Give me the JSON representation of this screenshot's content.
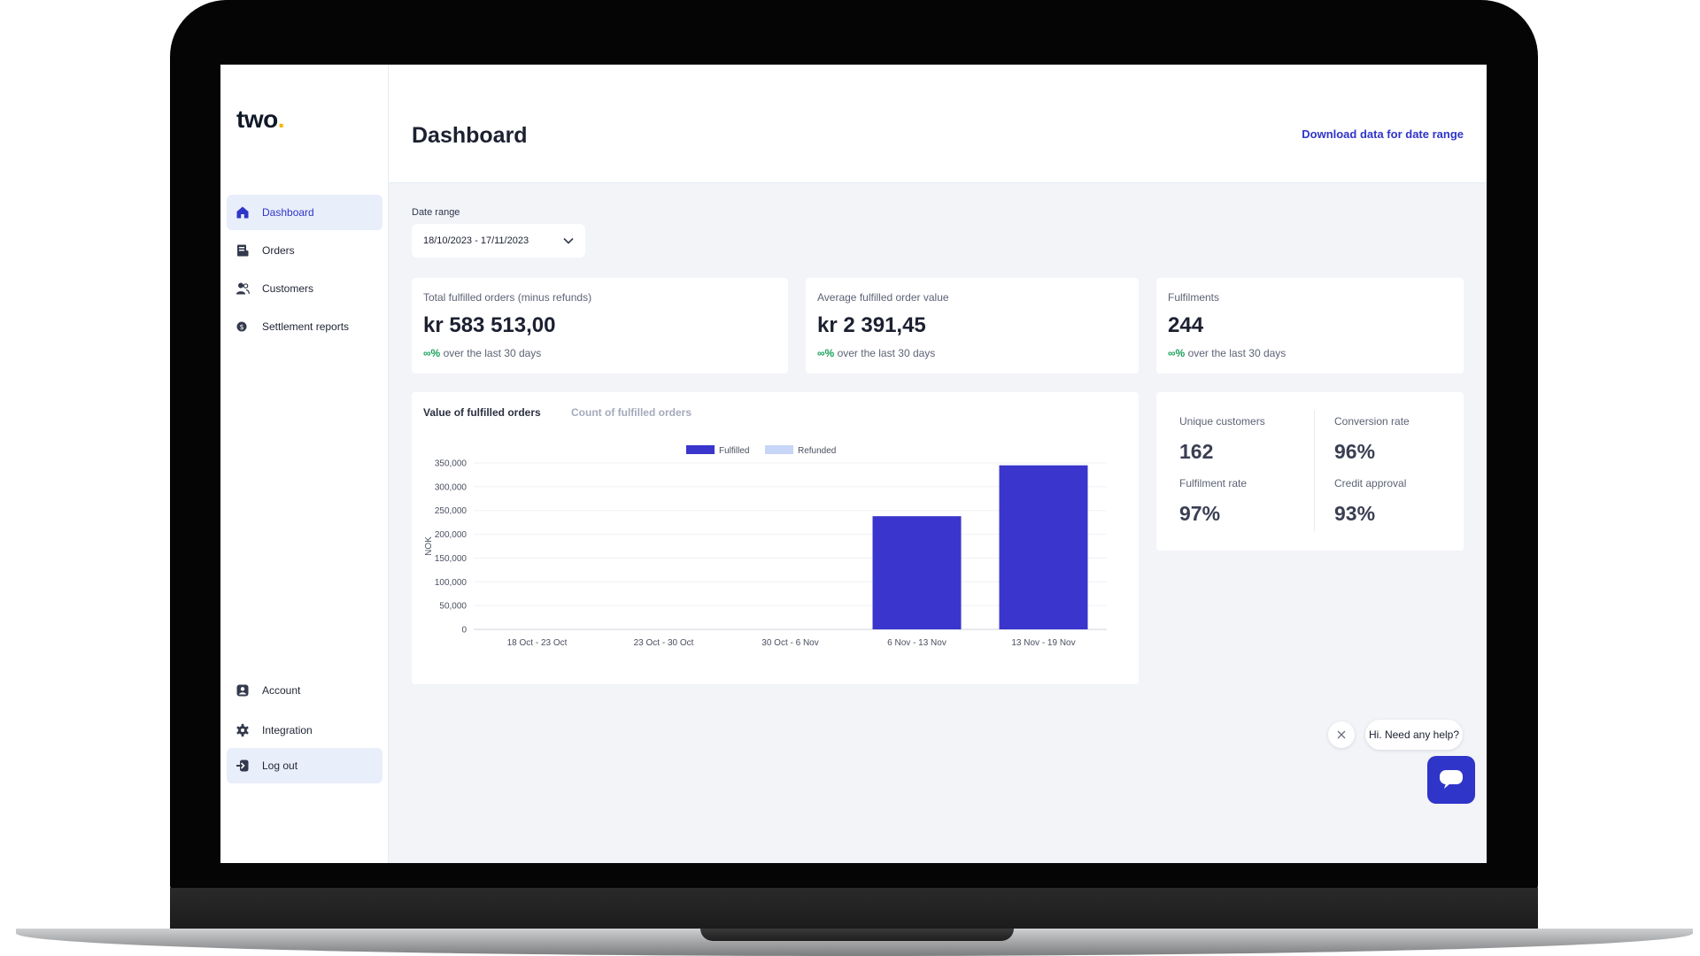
{
  "brand": {
    "name": "two",
    "dot": "."
  },
  "sidebar": {
    "items": [
      {
        "label": "Dashboard",
        "icon": "house-icon"
      },
      {
        "label": "Orders",
        "icon": "receipt-icon"
      },
      {
        "label": "Customers",
        "icon": "users-icon"
      },
      {
        "label": "Settlement reports",
        "icon": "coin-icon"
      }
    ],
    "bottom_items": [
      {
        "label": "Account",
        "icon": "user-card-icon"
      },
      {
        "label": "Integration",
        "icon": "gear-icon"
      },
      {
        "label": "Log out",
        "icon": "logout-icon"
      }
    ]
  },
  "header": {
    "title": "Dashboard",
    "download_label": "Download data for date range"
  },
  "filters": {
    "date_range_label": "Date range",
    "date_range_value": "18/10/2023 - 17/11/2023"
  },
  "stats": [
    {
      "label": "Total fulfilled orders (minus refunds)",
      "value": "kr 583 513,00",
      "change": "∞%",
      "period": " over the last 30 days"
    },
    {
      "label": "Average fulfilled order value",
      "value": "kr 2 391,45",
      "change": "∞%",
      "period": " over the last 30 days"
    },
    {
      "label": "Fulfilments",
      "value": "244",
      "change": "∞%",
      "period": " over the last 30 days"
    }
  ],
  "chart_tabs": {
    "active": "Value of fulfilled orders",
    "inactive": "Count of fulfilled orders"
  },
  "chart_data": {
    "type": "bar",
    "categories": [
      "18 Oct - 23 Oct",
      "23 Oct - 30 Oct",
      "30 Oct - 6 Nov",
      "6 Nov - 13 Nov",
      "13 Nov - 19 Nov"
    ],
    "series": [
      {
        "name": "Fulfilled",
        "values": [
          0,
          0,
          0,
          238000,
          345000
        ],
        "color": "#3a35cc"
      },
      {
        "name": "Refunded",
        "values": [
          0,
          0,
          0,
          0,
          0
        ],
        "color": "#c7d5f7"
      }
    ],
    "ylabel": "NOK",
    "ylim": [
      0,
      350000
    ],
    "yticks": [
      "0",
      "50,000",
      "100,000",
      "150,000",
      "200,000",
      "250,000",
      "300,000",
      "350,000"
    ],
    "legend": "top-center",
    "grid": true
  },
  "metrics": [
    {
      "label": "Unique customers",
      "value": "162"
    },
    {
      "label": "Conversion rate",
      "value": "96%"
    },
    {
      "label": "Fulfilment rate",
      "value": "97%"
    },
    {
      "label": "Credit approval",
      "value": "93%"
    }
  ],
  "chat": {
    "message": "Hi. Need any help?"
  },
  "colors": {
    "accent": "#2f35c9",
    "positive": "#18a05a",
    "bar": "#3a35cc",
    "background": "#f2f4f8"
  }
}
